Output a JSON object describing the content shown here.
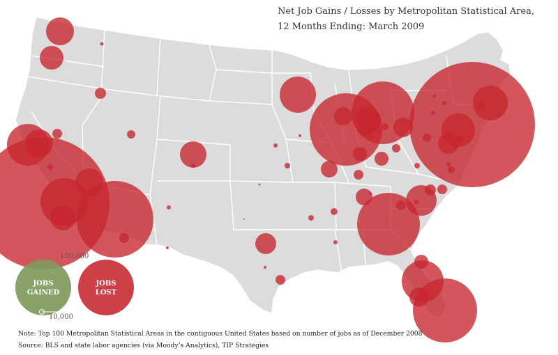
{
  "title": {
    "line1": "Net Job Gains / Losses by  Metropolitan Statistical Area,",
    "line2": "12 Months Ending:  March  2009"
  },
  "legend": {
    "gained_label_1": "JOBS",
    "gained_label_2": "GAINED",
    "lost_label_1": "JOBS",
    "lost_label_2": "LOST",
    "size_large": "100,000",
    "size_small": "10,000"
  },
  "notes": {
    "note": "Note:  Top 100 Metropolitan Statistical Areas in the contiguous United States based on number of jobs as of December 2008",
    "source": "Source:  BLS and state labor agencies (via Moody’s Analytics), TIP Strategies"
  },
  "colors": {
    "land": "#dcdcdc",
    "border": "#ffffff",
    "loss": "#c6262e",
    "gain": "#7f9a5c"
  }
}
